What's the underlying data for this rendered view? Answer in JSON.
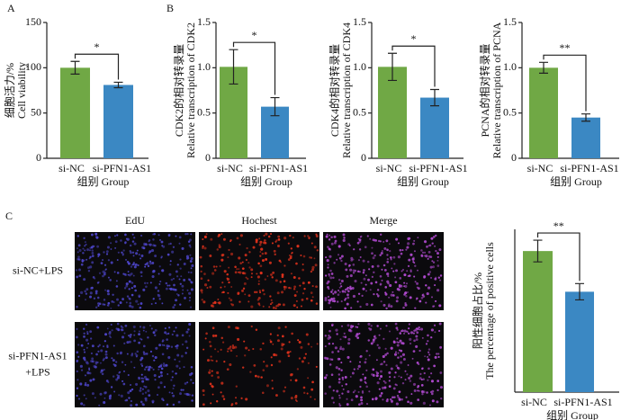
{
  "chart_data": [
    {
      "type": "bar",
      "panel_label": "A",
      "ylabel": [
        "细胞活力/%",
        "Cell viability"
      ],
      "categories": [
        "si-NC",
        "si-PFN1-AS1"
      ],
      "xlabel": "组别  Group",
      "values": [
        100,
        81
      ],
      "errors": [
        7,
        3
      ],
      "colors": [
        "#70a845",
        "#3b88c3"
      ],
      "ylim": [
        0,
        150
      ],
      "yticks": [
        0,
        50,
        100,
        150
      ],
      "annotation": "*"
    },
    {
      "type": "bar",
      "panel_label": "B",
      "ylabel": [
        "CDK2的相对转录量",
        "Relative transcription of CDK2"
      ],
      "categories": [
        "si-NC",
        "si-PFN1-AS1"
      ],
      "xlabel": "组别  Group",
      "values": [
        1.01,
        0.57
      ],
      "errors": [
        0.19,
        0.1
      ],
      "colors": [
        "#70a845",
        "#3b88c3"
      ],
      "ylim": [
        0,
        1.5
      ],
      "yticks": [
        0,
        0.5,
        {
          "value": 1,
          "label": "1.0"
        },
        1.5
      ],
      "annotation": "*"
    },
    {
      "type": "bar",
      "ylabel": [
        "CDK4的相对转录量",
        "Relative transcription of CDK4"
      ],
      "categories": [
        "si-NC",
        "si-PFN1-AS1"
      ],
      "xlabel": "组别  Group",
      "values": [
        1.01,
        0.67
      ],
      "errors": [
        0.15,
        0.09
      ],
      "colors": [
        "#70a845",
        "#3b88c3"
      ],
      "ylim": [
        0,
        1.5
      ],
      "yticks": [
        0,
        0.5,
        {
          "value": 1,
          "label": "1.0"
        },
        1.5
      ],
      "annotation": "*"
    },
    {
      "type": "bar",
      "ylabel": [
        "PCNA的相对转录量",
        "Relative transcription of PCNA"
      ],
      "categories": [
        "si-NC",
        "si-PFN1-AS1"
      ],
      "xlabel": "组别  Group",
      "values": [
        1.0,
        0.45
      ],
      "errors": [
        0.06,
        0.04
      ],
      "colors": [
        "#70a845",
        "#3b88c3"
      ],
      "ylim": [
        0,
        1.5
      ],
      "yticks": [
        0,
        0.5,
        {
          "value": 1,
          "label": "1.0"
        },
        1.5
      ],
      "annotation": "**"
    },
    {
      "type": "bar",
      "ylabel": [
        "阳性细胞占比/%",
        "The percentage of positive cells"
      ],
      "categories": [
        "si-NC",
        "si-PFN1-AS1"
      ],
      "xlabel": "组别  Group",
      "values": [
        52,
        37
      ],
      "errors": [
        4,
        3
      ],
      "colors": [
        "#70a845",
        "#3b88c3"
      ],
      "ylim": [
        0,
        60
      ],
      "annotation": "**"
    }
  ],
  "image_panel": {
    "panel_label": "C",
    "columns": [
      "EdU",
      "Hochest",
      "Merge"
    ],
    "rows": [
      [
        "si-NC+LPS"
      ],
      [
        "si-PFN1-AS1",
        "+LPS"
      ]
    ]
  }
}
